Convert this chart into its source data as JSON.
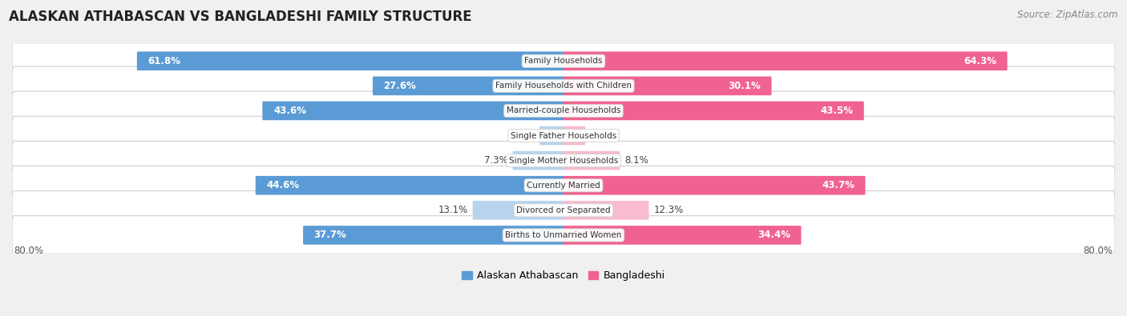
{
  "title": "ALASKAN ATHABASCAN VS BANGLADESHI FAMILY STRUCTURE",
  "source": "Source: ZipAtlas.com",
  "categories": [
    "Family Households",
    "Family Households with Children",
    "Married-couple Households",
    "Single Father Households",
    "Single Mother Households",
    "Currently Married",
    "Divorced or Separated",
    "Births to Unmarried Women"
  ],
  "left_values": [
    61.8,
    27.6,
    43.6,
    3.4,
    7.3,
    44.6,
    13.1,
    37.7
  ],
  "right_values": [
    64.3,
    30.1,
    43.5,
    3.1,
    8.1,
    43.7,
    12.3,
    34.4
  ],
  "left_label": "Alaskan Athabascan",
  "right_label": "Bangladeshi",
  "left_color_strong": "#5B9BD5",
  "left_color_light": "#B8D4ED",
  "right_color_strong": "#F06292",
  "right_color_light": "#F8BBD0",
  "max_val": 80.0,
  "background_color": "#f0f0f0",
  "row_bg_color": "#ffffff",
  "title_fontsize": 12,
  "source_fontsize": 8.5,
  "bar_fontsize": 8.5,
  "category_fontsize": 7.5,
  "axis_fontsize": 8.5,
  "legend_fontsize": 9,
  "inside_label_threshold": 15.0
}
